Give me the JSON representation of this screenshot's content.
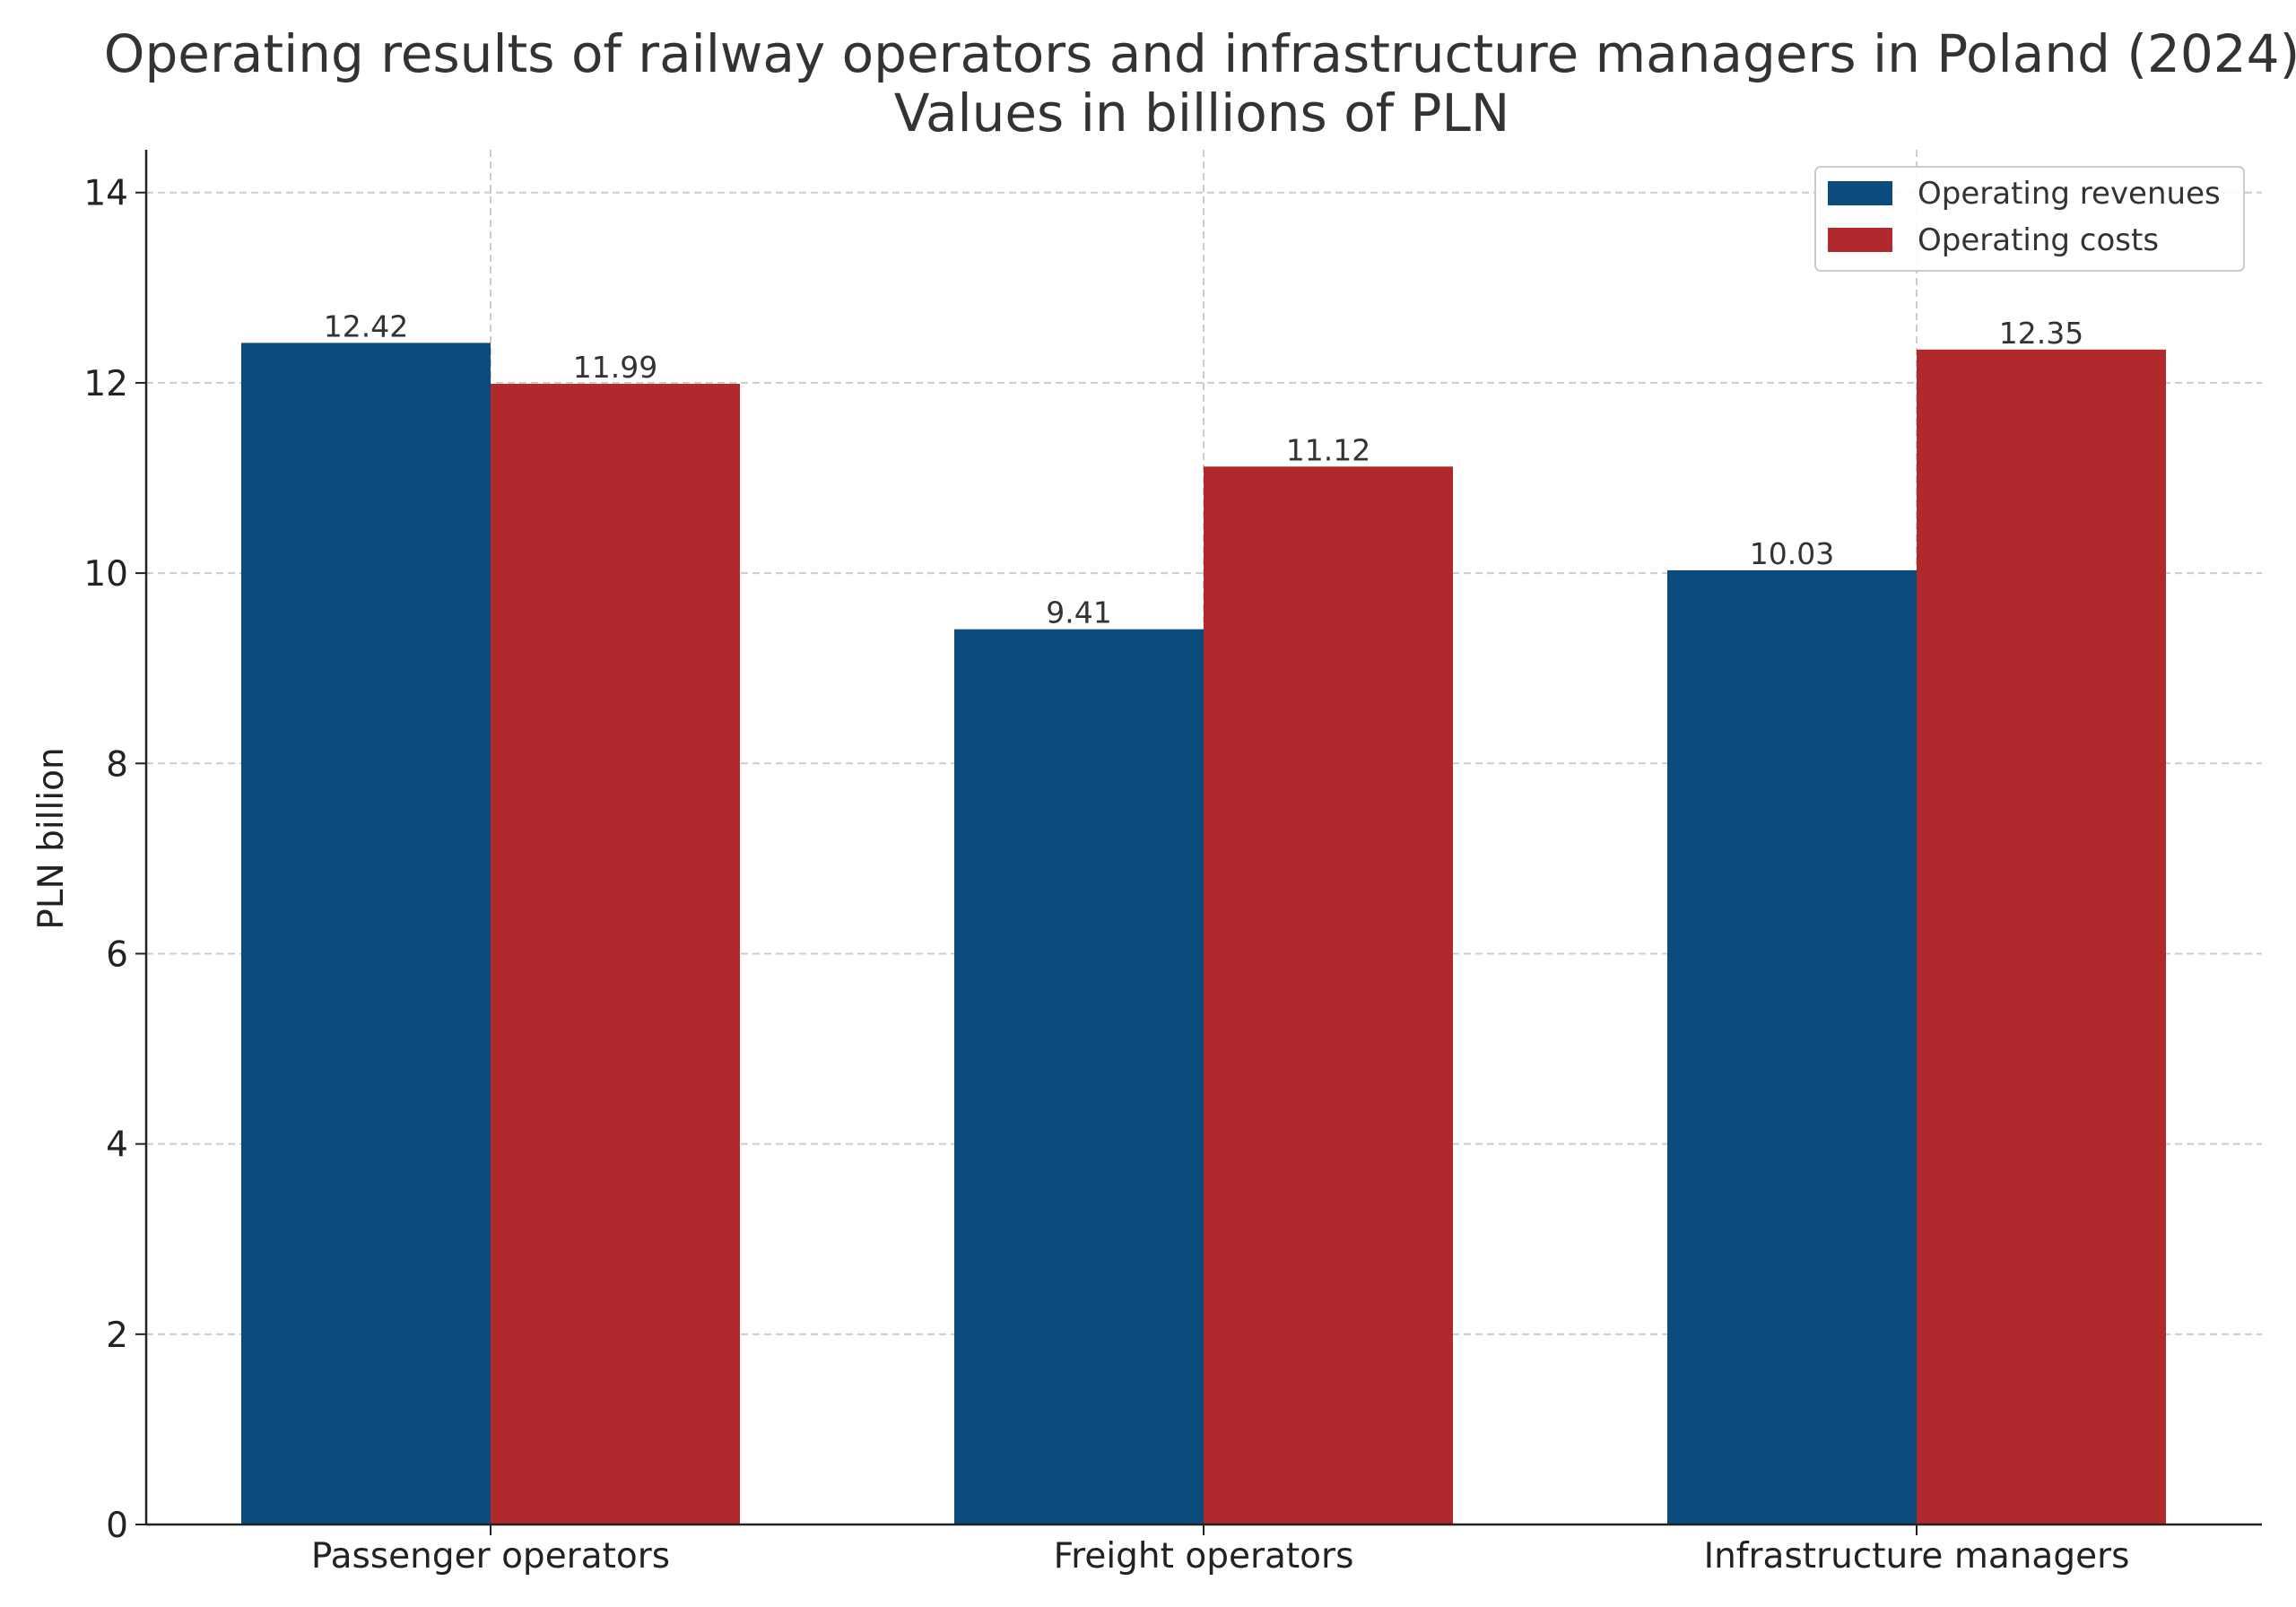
{
  "chart_data": {
    "type": "bar",
    "title": "Operating results of railway operators and infrastructure managers in Poland (2024)",
    "subtitle": "Values in billions of PLN",
    "xlabel": "",
    "ylabel": "PLN billion",
    "categories": [
      "Passenger operators",
      "Freight operators",
      "Infrastructure managers"
    ],
    "series": [
      {
        "name": "Operating revenues",
        "values": [
          12.42,
          9.41,
          10.03
        ],
        "color": "#0b4c7c"
      },
      {
        "name": "Operating costs",
        "values": [
          11.99,
          11.12,
          12.35
        ],
        "color": "#b0292c"
      }
    ],
    "ylim": [
      0,
      14.45
    ],
    "yticks": [
      0,
      2,
      4,
      6,
      8,
      10,
      12,
      14
    ],
    "grid": true,
    "legend_position": "top-right",
    "data_labels": true
  }
}
